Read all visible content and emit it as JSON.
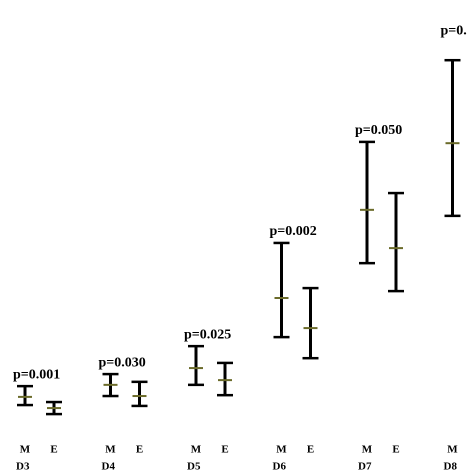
{
  "chart_data": {
    "type": "errorbar",
    "categories": [
      "D3",
      "D4",
      "D5",
      "D6",
      "D7",
      "D8"
    ],
    "annotations": [
      "p=0.001",
      "p=0.030",
      "p=0.025",
      "p=0.002",
      "p=0.050",
      "p=0."
    ],
    "series": [
      {
        "name": "M",
        "color": "#000000",
        "mid_color": "#6b6b2a",
        "values": [
          7.7,
          10.5,
          14.4,
          30.7,
          51.2,
          66.7
        ],
        "lows": [
          5.8,
          7.9,
          10.5,
          21.6,
          38.8,
          49.8
        ],
        "highs": [
          10.2,
          13.0,
          19.5,
          43.5,
          67.0,
          86.0
        ]
      },
      {
        "name": "E",
        "color": "#000000",
        "mid_color": "#6b6b2a",
        "values": [
          5.1,
          7.9,
          11.6,
          23.7,
          42.3,
          null
        ],
        "lows": [
          3.7,
          5.6,
          8.1,
          16.7,
          32.3,
          null
        ],
        "highs": [
          6.5,
          11.2,
          15.6,
          33.0,
          55.1,
          null
        ]
      }
    ],
    "ylim": [
      0,
      100
    ]
  }
}
